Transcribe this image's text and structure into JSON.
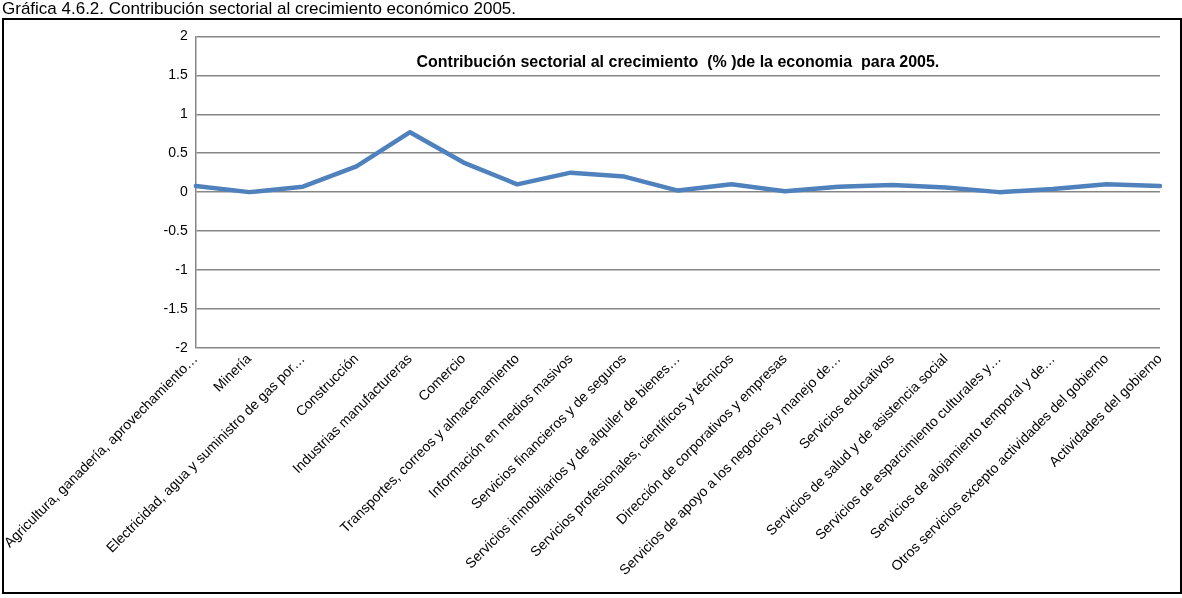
{
  "chart_data": {
    "type": "line",
    "title": "Contribución sectorial al crecimiento  (% )de la economia  para 2005.",
    "annotations": [
      "Gráfica 4.6.2. Contribución sectorial al crecimiento económico 2005."
    ],
    "categories": [
      "Agricultura, ganadería, aprovechamiento…",
      "Minería",
      "Electricidad, agua y suministro de gas por…",
      "Construcción",
      "Industrias manufactureras",
      "Comercio",
      "Transportes, correos y almacenamiento",
      "Información en medios masivos",
      "Servicios financieros y de seguros",
      "Servicios inmobiliarios y de alquiler de bienes…",
      "Servicios profesionales, científicos y técnicos",
      "Dirección de corporativos y empresas",
      "Servicios de apoyo a los negocios y manejo de…",
      "Servicios educativos",
      "Servicios de salud y de asistencia social",
      "Servicios de esparcimiento culturales y…",
      "Servicios de alojamiento temporal y de…",
      "Otros servicios excepto actividades del gobierno",
      "Actividades del gobierno"
    ],
    "series": [
      {
        "color": "#4f81bd",
        "values": [
          0.08,
          0.0,
          0.07,
          0.33,
          0.77,
          0.38,
          0.1,
          0.25,
          0.2,
          0.02,
          0.1,
          0.01,
          0.07,
          0.09,
          0.06,
          0.0,
          0.04,
          0.1,
          0.08
        ]
      }
    ],
    "ylim": [
      -2,
      2
    ],
    "yticks": [
      -2,
      -1.5,
      -1,
      -0.5,
      0,
      0.5,
      1,
      1.5,
      2
    ],
    "grid": "y",
    "legend": false,
    "marker": "none",
    "line_style": "solid"
  }
}
